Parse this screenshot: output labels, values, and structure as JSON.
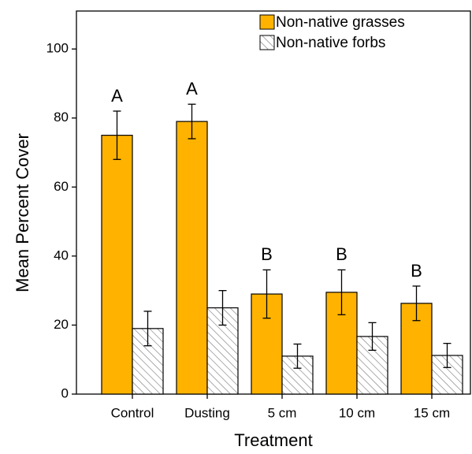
{
  "chart_data": {
    "type": "bar",
    "x_label": "Treatment",
    "y_label": "Mean Percent Cover",
    "categories": [
      "Control",
      "Dusting",
      "5 cm",
      "10 cm",
      "15 cm"
    ],
    "series": [
      {
        "name": "Non-native grasses",
        "color": "#ffb300",
        "hatch": false,
        "values": [
          75,
          79,
          29,
          29.5,
          26.3
        ],
        "errors": [
          7,
          5,
          7,
          6.5,
          5
        ],
        "annotations": [
          "A",
          "A",
          "B",
          "B",
          "B"
        ]
      },
      {
        "name": "Non-native forbs",
        "color": "#ffffff",
        "hatch": true,
        "values": [
          19,
          25,
          11,
          16.7,
          11.2
        ],
        "errors": [
          5,
          5,
          3.5,
          4,
          3.5
        ]
      }
    ],
    "ylim": [
      0,
      111
    ],
    "yticks": [
      0,
      20,
      40,
      60,
      80,
      100
    ],
    "legend": "upper right"
  }
}
